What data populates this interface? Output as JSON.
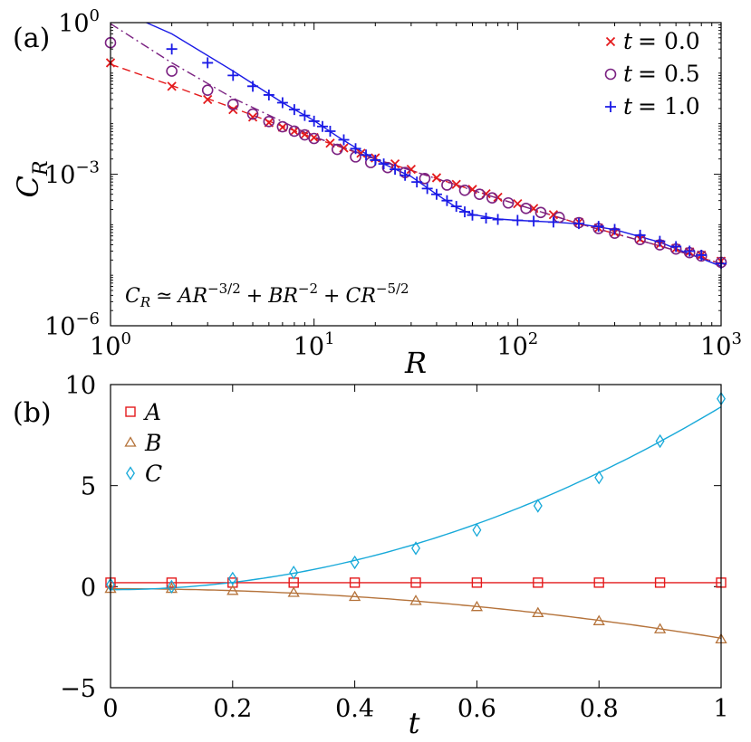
{
  "chart_data": [
    {
      "panel_label": "(a)",
      "type": "scatter",
      "xscale": "log",
      "yscale": "log",
      "xlabel": "R",
      "ylabel": "C",
      "ylabel_sub": "R",
      "xlim": [
        1,
        1000
      ],
      "ylim": [
        1e-06,
        1
      ],
      "xticks": [
        1,
        10,
        100,
        1000
      ],
      "xtick_labels": [
        {
          "base": "10",
          "exp": "0"
        },
        {
          "base": "10",
          "exp": "1"
        },
        {
          "base": "10",
          "exp": "2"
        },
        {
          "base": "10",
          "exp": "3"
        }
      ],
      "yticks": [
        1e-06,
        0.001,
        1
      ],
      "ytick_labels": [
        {
          "base": "10",
          "exp": "−6"
        },
        {
          "base": "10",
          "exp": "−3"
        },
        {
          "base": "10",
          "exp": "0"
        }
      ],
      "legend_position": "top-right",
      "annotation": {
        "lhs": "C",
        "lhs_sub": "R",
        "rel": "≃",
        "a": "AR",
        "a_exp": "−3/2",
        "plus": "+",
        "b": "BR",
        "b_exp": "−2",
        "c": "CR",
        "c_exp": "−5/2"
      },
      "series": [
        {
          "name": "t = 0.0",
          "legend_var": "t",
          "legend_val": "= 0.0",
          "color": "#e41a1c",
          "marker": "x",
          "line_style": "dashed",
          "points": [
            [
              1,
              0.16
            ],
            [
              2,
              0.055
            ],
            [
              3,
              0.03
            ],
            [
              4,
              0.019
            ],
            [
              5,
              0.0135
            ],
            [
              6,
              0.0105
            ],
            [
              7,
              0.0085
            ],
            [
              8,
              0.0071
            ],
            [
              9,
              0.0061
            ],
            [
              10,
              0.0053
            ],
            [
              12,
              0.0041
            ],
            [
              14,
              0.0033
            ],
            [
              17,
              0.0026
            ],
            [
              20,
              0.0021
            ],
            [
              25,
              0.0016
            ],
            [
              30,
              0.00125
            ],
            [
              40,
              0.00085
            ],
            [
              50,
              0.00063
            ],
            [
              60,
              0.0005
            ],
            [
              70,
              0.00041
            ],
            [
              80,
              0.00035
            ],
            [
              100,
              0.00026
            ],
            [
              120,
              0.00021
            ],
            [
              150,
              0.000158
            ],
            [
              200,
              0.000112
            ],
            [
              250,
              8.6e-05
            ],
            [
              300,
              7e-05
            ],
            [
              400,
              5.2e-05
            ],
            [
              500,
              4.1e-05
            ],
            [
              600,
              3.4e-05
            ],
            [
              700,
              2.9e-05
            ],
            [
              800,
              2.5e-05
            ],
            [
              1000,
              1.9e-05
            ]
          ],
          "fit": [
            [
              1,
              0.15
            ],
            [
              2,
              0.057
            ],
            [
              4,
              0.0205
            ],
            [
              7,
              0.0089
            ],
            [
              10,
              0.0052
            ],
            [
              20,
              0.002
            ],
            [
              50,
              0.00062
            ],
            [
              100,
              0.00025
            ],
            [
              200,
              0.000105
            ],
            [
              500,
              3.8e-05
            ],
            [
              1000,
              1.7e-05
            ]
          ]
        },
        {
          "name": "t = 0.5",
          "legend_var": "t",
          "legend_val": "= 0.5",
          "color": "#7b2282",
          "marker": "circle",
          "line_style": "dashdot",
          "points": [
            [
              1,
              0.4
            ],
            [
              2,
              0.11
            ],
            [
              3,
              0.046
            ],
            [
              4,
              0.024
            ],
            [
              5,
              0.0155
            ],
            [
              6,
              0.011
            ],
            [
              7,
              0.0087
            ],
            [
              8,
              0.0071
            ],
            [
              9,
              0.006
            ],
            [
              10,
              0.0051
            ],
            [
              13,
              0.0031
            ],
            [
              16,
              0.0022
            ],
            [
              19,
              0.0017
            ],
            [
              23,
              0.00135
            ],
            [
              28,
              0.00108
            ],
            [
              35,
              0.00082
            ],
            [
              45,
              0.00061
            ],
            [
              55,
              0.00048
            ],
            [
              65,
              0.0004
            ],
            [
              75,
              0.00034
            ],
            [
              90,
              0.00027
            ],
            [
              110,
              0.00021
            ],
            [
              130,
              0.000175
            ],
            [
              160,
              0.00014
            ],
            [
              200,
              0.00011
            ],
            [
              250,
              8.4e-05
            ],
            [
              300,
              6.8e-05
            ],
            [
              400,
              5.1e-05
            ],
            [
              500,
              4e-05
            ],
            [
              600,
              3.3e-05
            ],
            [
              700,
              2.8e-05
            ],
            [
              800,
              2.4e-05
            ],
            [
              1000,
              1.8e-05
            ]
          ],
          "fit": [
            [
              1,
              0.95
            ],
            [
              2,
              0.16
            ],
            [
              4,
              0.032
            ],
            [
              7,
              0.011
            ],
            [
              10,
              0.0055
            ],
            [
              20,
              0.002
            ],
            [
              50,
              0.00061
            ],
            [
              100,
              0.00025
            ],
            [
              200,
              0.000105
            ],
            [
              500,
              3.8e-05
            ],
            [
              1000,
              1.7e-05
            ]
          ]
        },
        {
          "name": "t = 1.0",
          "legend_var": "t",
          "legend_val": "= 1.0",
          "color": "#1a1ae6",
          "marker": "plus",
          "line_style": "solid",
          "points": [
            [
              2,
              0.3
            ],
            [
              3,
              0.16
            ],
            [
              4,
              0.09
            ],
            [
              5,
              0.055
            ],
            [
              6,
              0.037
            ],
            [
              7,
              0.026
            ],
            [
              8,
              0.019
            ],
            [
              9,
              0.0145
            ],
            [
              10,
              0.0112
            ],
            [
              11,
              0.0088
            ],
            [
              12,
              0.0071
            ],
            [
              14,
              0.0048
            ],
            [
              16,
              0.0032
            ],
            [
              18,
              0.0024
            ],
            [
              20,
              0.0019
            ],
            [
              22,
              0.0016
            ],
            [
              25,
              0.00125
            ],
            [
              28,
              0.00095
            ],
            [
              32,
              0.0007
            ],
            [
              36,
              0.00052
            ],
            [
              40,
              0.0004
            ],
            [
              45,
              0.0003
            ],
            [
              50,
              0.00023
            ],
            [
              55,
              0.00018
            ],
            [
              60,
              0.000155
            ],
            [
              70,
              0.000135
            ],
            [
              80,
              0.000127
            ],
            [
              100,
              0.000122
            ],
            [
              120,
              0.000118
            ],
            [
              150,
              0.000113
            ],
            [
              200,
              0.000105
            ],
            [
              250,
              9.3e-05
            ],
            [
              300,
              8.1e-05
            ],
            [
              400,
              6.2e-05
            ],
            [
              500,
              4.7e-05
            ],
            [
              600,
              3.7e-05
            ],
            [
              700,
              3e-05
            ],
            [
              800,
              2.5e-05
            ],
            [
              1000,
              1.7e-05
            ]
          ],
          "fit": [
            [
              1.5,
              1
            ],
            [
              2,
              0.6
            ],
            [
              4,
              0.11
            ],
            [
              7,
              0.026
            ],
            [
              10,
              0.0115
            ],
            [
              13,
              0.0056
            ],
            [
              17,
              0.0029
            ],
            [
              22,
              0.0016
            ],
            [
              30,
              0.0009
            ],
            [
              40,
              0.0004
            ],
            [
              50,
              0.00022
            ],
            [
              60,
              0.00016
            ],
            [
              80,
              0.00013
            ],
            [
              100,
              0.000122
            ],
            [
              150,
              0.000113
            ],
            [
              200,
              0.000104
            ],
            [
              300,
              8e-05
            ],
            [
              500,
              4.5e-05
            ],
            [
              1000,
              1.5e-05
            ]
          ]
        }
      ]
    },
    {
      "panel_label": "(b)",
      "type": "scatter",
      "xlabel": "t",
      "ylabel": "",
      "xlim": [
        0,
        1
      ],
      "ylim": [
        -5,
        10
      ],
      "xticks": [
        0,
        0.2,
        0.4,
        0.6,
        0.8,
        1
      ],
      "xtick_labels": [
        "0",
        "0.2",
        "0.4",
        "0.6",
        "0.8",
        "1"
      ],
      "yticks": [
        -5,
        0,
        5,
        10
      ],
      "ytick_labels": [
        "−5",
        "0",
        "5",
        "10"
      ],
      "legend_position": "top-left",
      "x": [
        0,
        0.1,
        0.2,
        0.3,
        0.4,
        0.5,
        0.6,
        0.7,
        0.8,
        0.9,
        1.0
      ],
      "series": [
        {
          "name": "A",
          "color": "#e41a1c",
          "marker": "square",
          "values": [
            0.2,
            0.2,
            0.2,
            0.2,
            0.2,
            0.2,
            0.2,
            0.2,
            0.2,
            0.2,
            0.2
          ],
          "fit": {
            "type": "quadratic",
            "a0": 0.2,
            "a1": 0,
            "a2": 0
          }
        },
        {
          "name": "B",
          "color": "#b5733b",
          "marker": "triangle",
          "values": [
            -0.1,
            -0.1,
            -0.2,
            -0.3,
            -0.5,
            -0.7,
            -1.0,
            -1.3,
            -1.7,
            -2.1,
            -2.6
          ],
          "fit": {
            "type": "quadratic",
            "a0": -0.1,
            "a1": 0,
            "a2": -2.45
          }
        },
        {
          "name": "C",
          "color": "#17a9d9",
          "marker": "diamond",
          "values": [
            0.1,
            0.0,
            0.4,
            0.7,
            1.2,
            1.9,
            2.8,
            4.0,
            5.4,
            7.2,
            9.3
          ],
          "fit": {
            "type": "quadratic",
            "a0": -0.15,
            "a1": 0,
            "a2": 9.05
          }
        }
      ]
    }
  ]
}
